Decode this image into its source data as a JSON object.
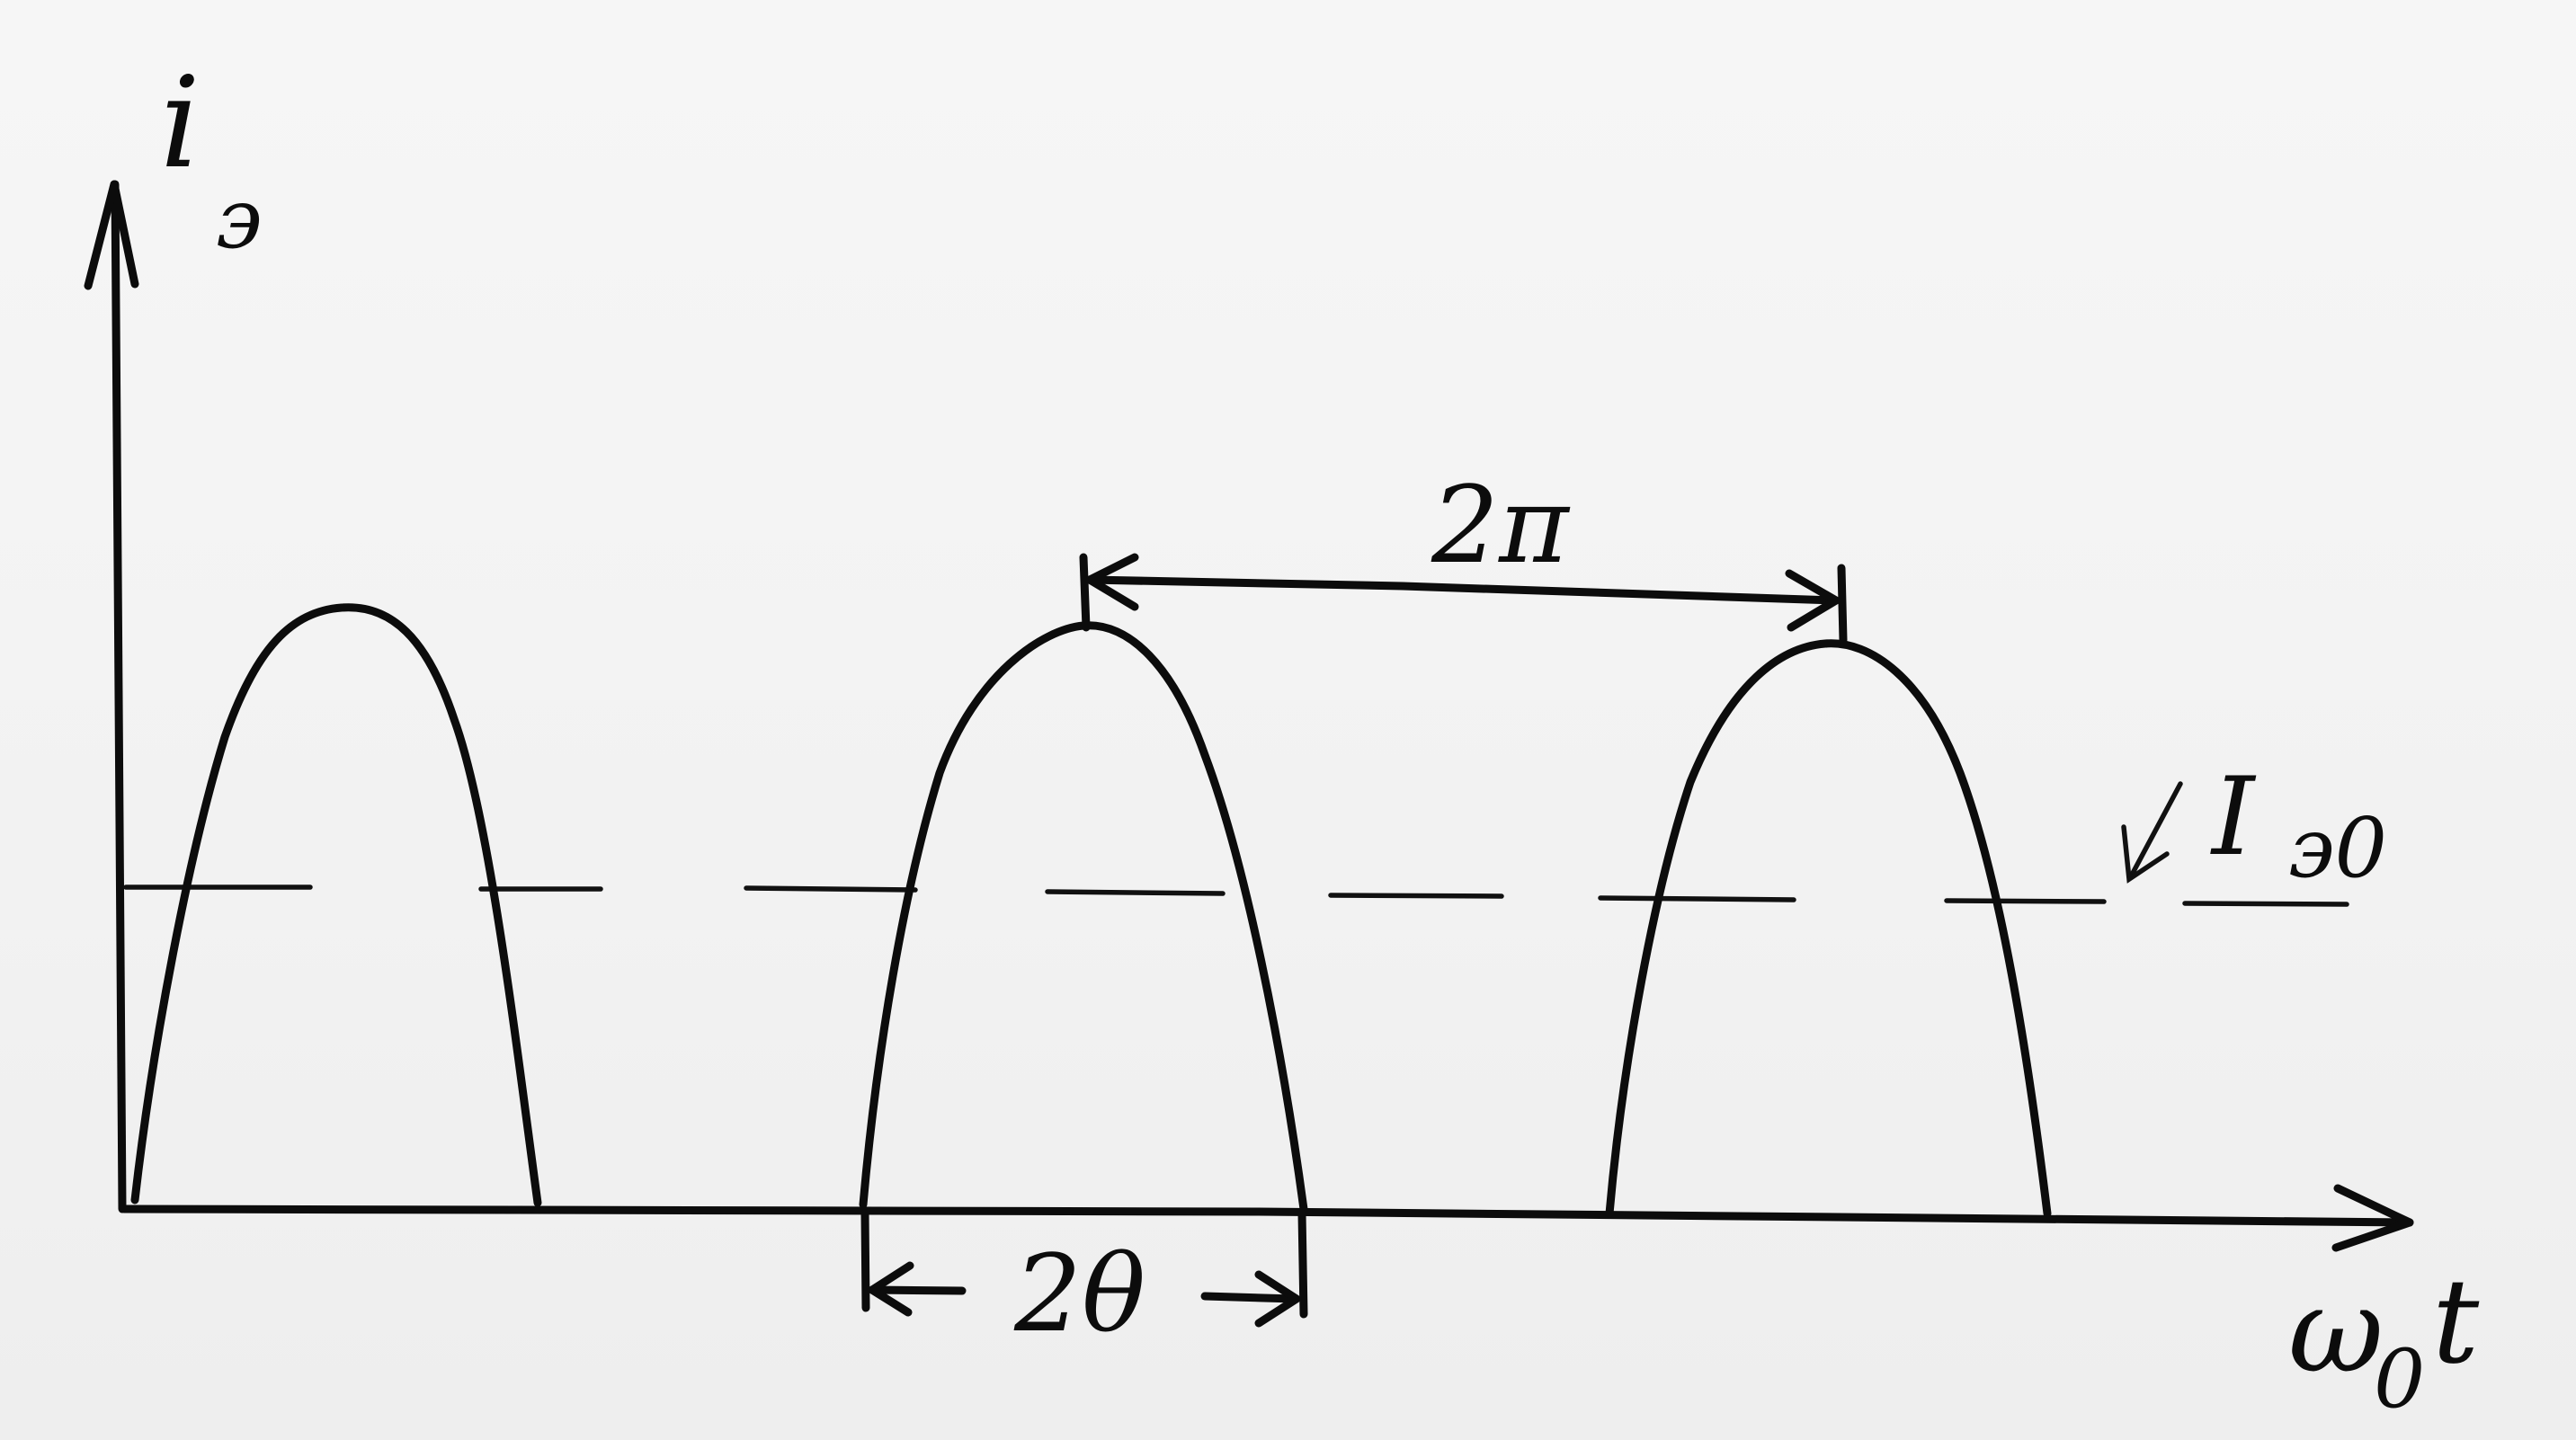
{
  "axes": {
    "y_label_main": "i",
    "y_label_sub": "э",
    "x_label_main": "ω",
    "x_label_sub": "0",
    "x_label_tail": "t"
  },
  "annotations": {
    "period_label": "2π",
    "pulse_width_label": "2θ",
    "dc_level_label_main": "I",
    "dc_level_label_sub": "э0"
  }
}
